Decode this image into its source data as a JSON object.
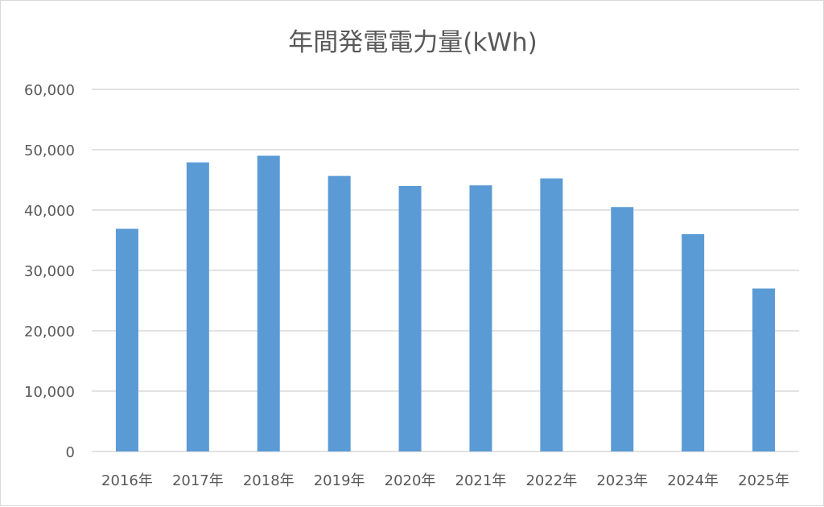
{
  "chart_data": {
    "type": "bar",
    "title": "年間発電電力量(kWh)",
    "xlabel": "",
    "ylabel": "",
    "categories": [
      "2016年",
      "2017年",
      "2018年",
      "2019年",
      "2020年",
      "2021年",
      "2022年",
      "2023年",
      "2024年",
      "2025年"
    ],
    "values": [
      36900,
      47900,
      49000,
      45650,
      44000,
      44100,
      45250,
      40500,
      36000,
      27000
    ],
    "ylim": [
      0,
      60000
    ],
    "yticks": [
      0,
      10000,
      20000,
      30000,
      40000,
      50000,
      60000
    ],
    "ytick_labels": [
      "0",
      "10,000",
      "20,000",
      "30,000",
      "40,000",
      "50,000",
      "60,000"
    ],
    "grid": true,
    "legend": "none",
    "colors": {
      "bar": "#5b9bd5",
      "grid": "#d9d9d9",
      "text": "#595959"
    }
  }
}
